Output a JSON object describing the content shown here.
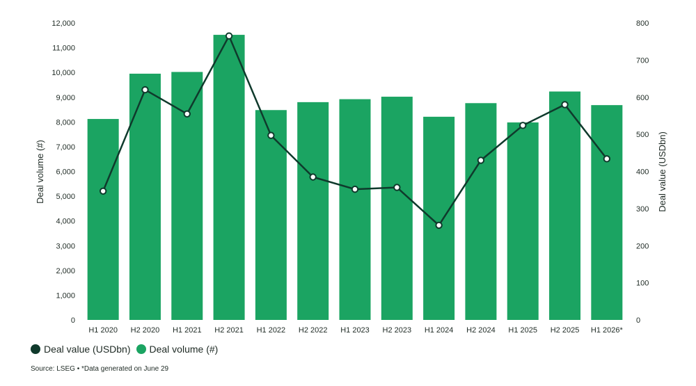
{
  "chart_data": {
    "type": "bar",
    "categories": [
      "H1 2020",
      "H2 2020",
      "H1 2021",
      "H2 2021",
      "H1 2022",
      "H2 2022",
      "H1 2023",
      "H2 2023",
      "H1 2024",
      "H2 2024",
      "H1 2025",
      "H2 2025",
      "H1 2026*"
    ],
    "series": [
      {
        "name": "Deal volume (#)",
        "type": "bar",
        "axis": "left",
        "color": "#1ba462",
        "values": [
          8120,
          9950,
          10020,
          11520,
          8480,
          8800,
          8920,
          9020,
          8210,
          8760,
          7980,
          9230,
          8680
        ]
      },
      {
        "name": "Deal value (USDbn)",
        "type": "line",
        "axis": "right",
        "color": "#0f3a2c",
        "values": [
          347,
          620,
          555,
          765,
          497,
          385,
          352,
          357,
          255,
          430,
          524,
          580,
          434
        ]
      }
    ],
    "ylabel": "Deal volume (#)",
    "y2label": "Deal value (USDbn)",
    "ylim": [
      0,
      12000
    ],
    "y2lim": [
      0,
      800
    ],
    "yticks": [
      "0",
      "1,000",
      "2,000",
      "3,000",
      "4,000",
      "5,000",
      "6,000",
      "7,000",
      "8,000",
      "9,000",
      "10,000",
      "11,000",
      "12,000"
    ],
    "y2ticks": [
      "0",
      "100",
      "200",
      "300",
      "400",
      "500",
      "600",
      "700",
      "800"
    ],
    "grid": false,
    "legend_position": "bottom-left"
  },
  "legend": {
    "line_label": "Deal value (USDbn)",
    "bar_label": "Deal volume (#)"
  },
  "source_note": "Source: LSEG • *Data generated on June 29"
}
